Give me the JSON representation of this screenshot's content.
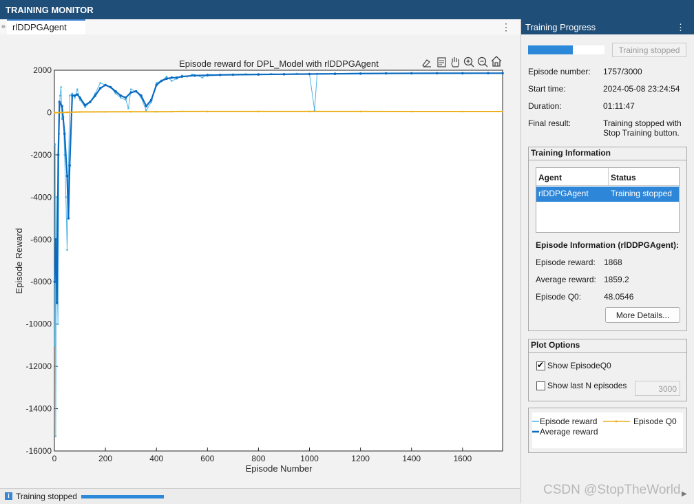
{
  "app": {
    "title": "TRAINING MONITOR"
  },
  "tabs": [
    {
      "label": "rlDDPGAgent"
    }
  ],
  "chart_data": {
    "type": "line",
    "title": "Episode reward for DPL_Model with rlDDPGAgent",
    "xlabel": "Episode Number",
    "ylabel": "Episode Reward",
    "xlim": [
      0,
      1757
    ],
    "ylim": [
      -16000,
      2000
    ],
    "xticks": [
      "0",
      "200",
      "400",
      "600",
      "800",
      "1000",
      "1200",
      "1400",
      "1600"
    ],
    "yticks": [
      "2000",
      "0",
      "-2000",
      "-4000",
      "-6000",
      "-8000",
      "-10000",
      "-12000",
      "-14000",
      "-16000"
    ],
    "grid": false,
    "legend": "bottom panel",
    "series": [
      {
        "name": "Episode reward",
        "color": "#4db3e8",
        "x": [
          1,
          3,
          5,
          8,
          10,
          14,
          18,
          22,
          26,
          30,
          35,
          40,
          45,
          50,
          55,
          60,
          70,
          80,
          90,
          100,
          120,
          140,
          160,
          180,
          200,
          220,
          240,
          260,
          280,
          290,
          300,
          320,
          340,
          360,
          380,
          400,
          420,
          440,
          460,
          480,
          500,
          520,
          540,
          560,
          580,
          600,
          650,
          700,
          750,
          800,
          850,
          900,
          950,
          1000,
          1020,
          1030,
          1100,
          1200,
          1300,
          1400,
          1500,
          1600,
          1700,
          1757
        ],
        "y": [
          -11000,
          -1500,
          -15300,
          -4000,
          -7000,
          -10000,
          -1000,
          800,
          1200,
          -300,
          -200,
          -2000,
          -4000,
          -6500,
          -3000,
          800,
          900,
          700,
          1100,
          600,
          250,
          500,
          900,
          1400,
          1300,
          1200,
          900,
          700,
          600,
          200,
          1100,
          1000,
          700,
          100,
          500,
          1400,
          1500,
          1700,
          1500,
          1600,
          1750,
          1700,
          1800,
          1750,
          1650,
          1800,
          1780,
          1800,
          1820,
          1790,
          1830,
          1810,
          1840,
          1820,
          100,
          1840,
          1850,
          1860,
          1860,
          1865,
          1862,
          1865,
          1866,
          1868
        ]
      },
      {
        "name": "Average reward",
        "color": "#0b6abf",
        "x": [
          1,
          5,
          10,
          15,
          20,
          30,
          40,
          50,
          55,
          60,
          70,
          80,
          90,
          100,
          120,
          140,
          160,
          180,
          200,
          220,
          240,
          260,
          280,
          300,
          320,
          340,
          360,
          380,
          400,
          420,
          440,
          460,
          480,
          500,
          550,
          600,
          650,
          700,
          800,
          900,
          1000,
          1100,
          1200,
          1300,
          1400,
          1500,
          1600,
          1700,
          1757
        ],
        "y": [
          -8000,
          -6000,
          -9000,
          -2000,
          500,
          300,
          -1000,
          -3000,
          -5000,
          -2500,
          800,
          800,
          850,
          700,
          350,
          500,
          800,
          1150,
          1300,
          1200,
          1000,
          800,
          700,
          950,
          1000,
          800,
          300,
          600,
          1300,
          1500,
          1600,
          1650,
          1650,
          1700,
          1750,
          1760,
          1780,
          1790,
          1800,
          1810,
          1820,
          1830,
          1840,
          1850,
          1855,
          1857,
          1858,
          1859,
          1859.2
        ]
      },
      {
        "name": "Episode Q0",
        "color": "#edb120",
        "x": [
          1,
          50,
          100,
          200,
          300,
          400,
          460,
          500,
          600,
          800,
          1000,
          1200,
          1400,
          1600,
          1757
        ],
        "y": [
          -10,
          10,
          30,
          35,
          40,
          40,
          45,
          50,
          50,
          50,
          50,
          50,
          48,
          48,
          48.05
        ]
      }
    ]
  },
  "toolbar": {
    "icons": [
      "export-icon",
      "data-tips-icon",
      "pan-icon",
      "zoom-in-icon",
      "zoom-out-icon",
      "home-icon"
    ]
  },
  "progress": {
    "header": "Training Progress",
    "fraction": 0.585,
    "stop_label": "Training stopped",
    "fields": [
      {
        "label": "Episode number:",
        "value": "1757/3000"
      },
      {
        "label": "Start time:",
        "value": "2024-05-08 23:24:54"
      },
      {
        "label": "Duration:",
        "value": "01:11:47"
      },
      {
        "label": "Final result:",
        "value": "Training stopped with",
        "value2": "Stop Training button."
      }
    ]
  },
  "training_info": {
    "title": "Training Information",
    "col_agent": "Agent",
    "col_status": "Status",
    "row_agent": "rlDDPGAgent",
    "row_status": "Training stopped"
  },
  "episode_info": {
    "title": "Episode Information (rlDDPGAgent):",
    "fields": [
      {
        "label": "Episode reward:",
        "value": "1868"
      },
      {
        "label": "Average reward:",
        "value": "1859.2"
      },
      {
        "label": "Episode Q0:",
        "value": "48.0546"
      }
    ],
    "details_label": "More Details..."
  },
  "plot_options": {
    "title": "Plot Options",
    "show_q0_label": "Show EpisodeQ0",
    "show_q0_checked": true,
    "show_last_n_label": "Show last N episodes",
    "show_last_n_checked": false,
    "n_value": "3000"
  },
  "legend": {
    "episode_reward": "Episode reward",
    "episode_q0": "Episode Q0",
    "average_reward": "Average reward"
  },
  "status": {
    "text": "Training stopped"
  },
  "watermark": "CSDN @StopTheWorld"
}
